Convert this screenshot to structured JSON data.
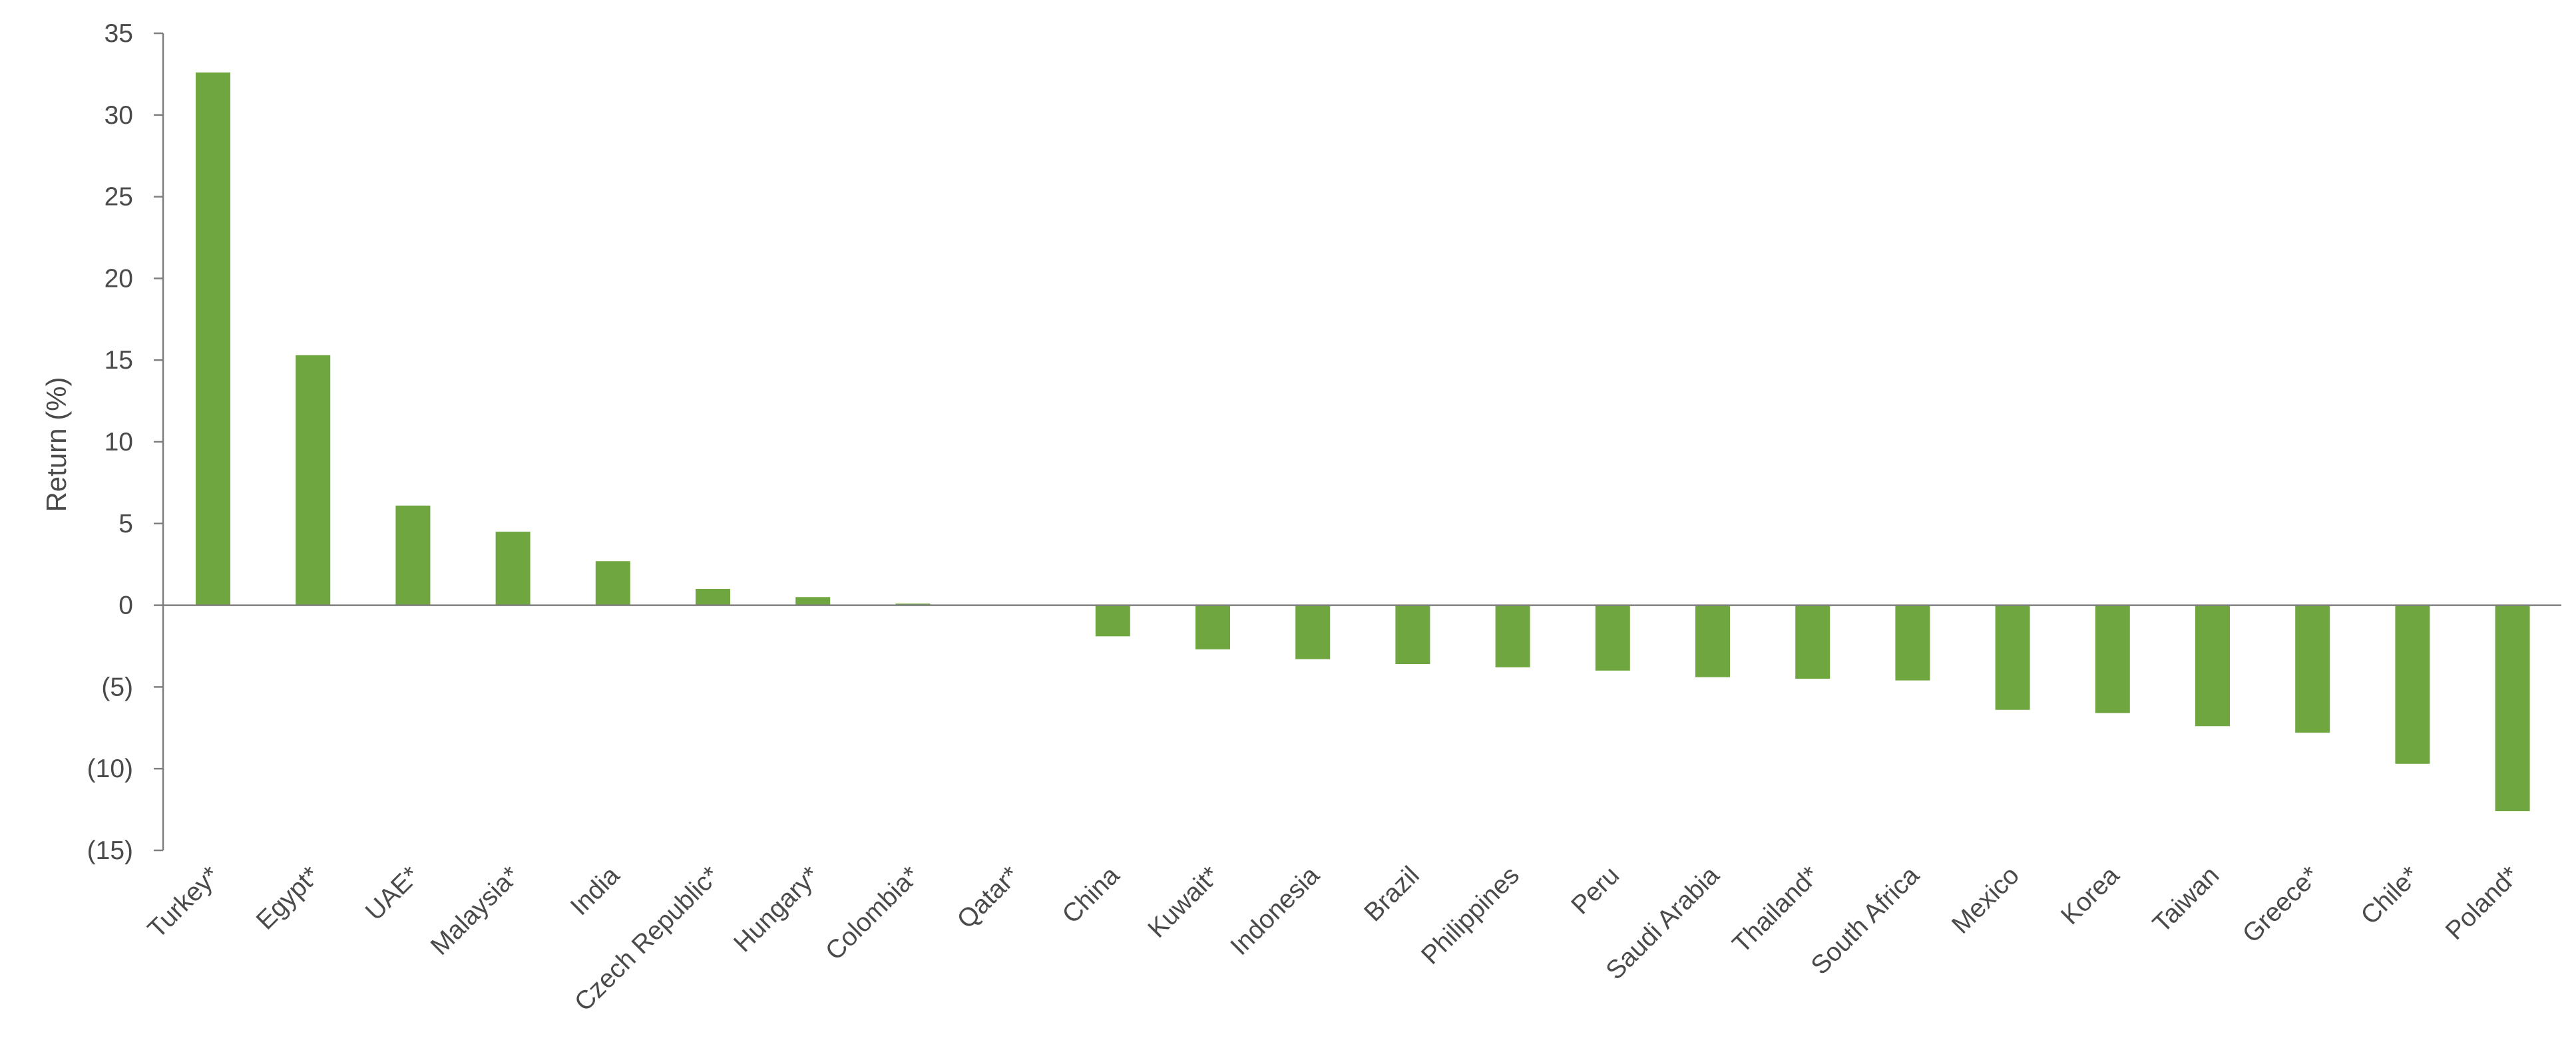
{
  "chart_data": {
    "type": "bar",
    "title": "",
    "xlabel": "",
    "ylabel": "Return (%)",
    "ylim": [
      -15,
      35
    ],
    "yticks": [
      {
        "value": 35,
        "label": "35"
      },
      {
        "value": 30,
        "label": "30"
      },
      {
        "value": 25,
        "label": "25"
      },
      {
        "value": 20,
        "label": "20"
      },
      {
        "value": 15,
        "label": "15"
      },
      {
        "value": 10,
        "label": "10"
      },
      {
        "value": 5,
        "label": "5"
      },
      {
        "value": 0,
        "label": "0"
      },
      {
        "value": -5,
        "label": "(5)"
      },
      {
        "value": -10,
        "label": "(10)"
      },
      {
        "value": -15,
        "label": "(15)"
      }
    ],
    "grid": false,
    "legend": "none",
    "bar_color": "#70a640",
    "axis_color": "#7f7f7f",
    "categories": [
      "Turkey*",
      "Egypt*",
      "UAE*",
      "Malaysia*",
      "India",
      "Czech Republic*",
      "Hungary*",
      "Colombia*",
      "Qatar*",
      "China",
      "Kuwait*",
      "Indonesia",
      "Brazil",
      "Philippines",
      "Peru",
      "Saudi Arabia",
      "Thailand*",
      "South Africa",
      "Mexico",
      "Korea",
      "Taiwan",
      "Greece*",
      "Chile*",
      "Poland*"
    ],
    "values": [
      32.6,
      15.3,
      6.1,
      4.5,
      2.7,
      1.0,
      0.5,
      0.1,
      0.0,
      -1.9,
      -2.7,
      -3.3,
      -3.6,
      -3.8,
      -4.0,
      -4.4,
      -4.5,
      -4.6,
      -6.4,
      -6.6,
      -7.4,
      -7.8,
      -9.7,
      -12.6
    ]
  }
}
